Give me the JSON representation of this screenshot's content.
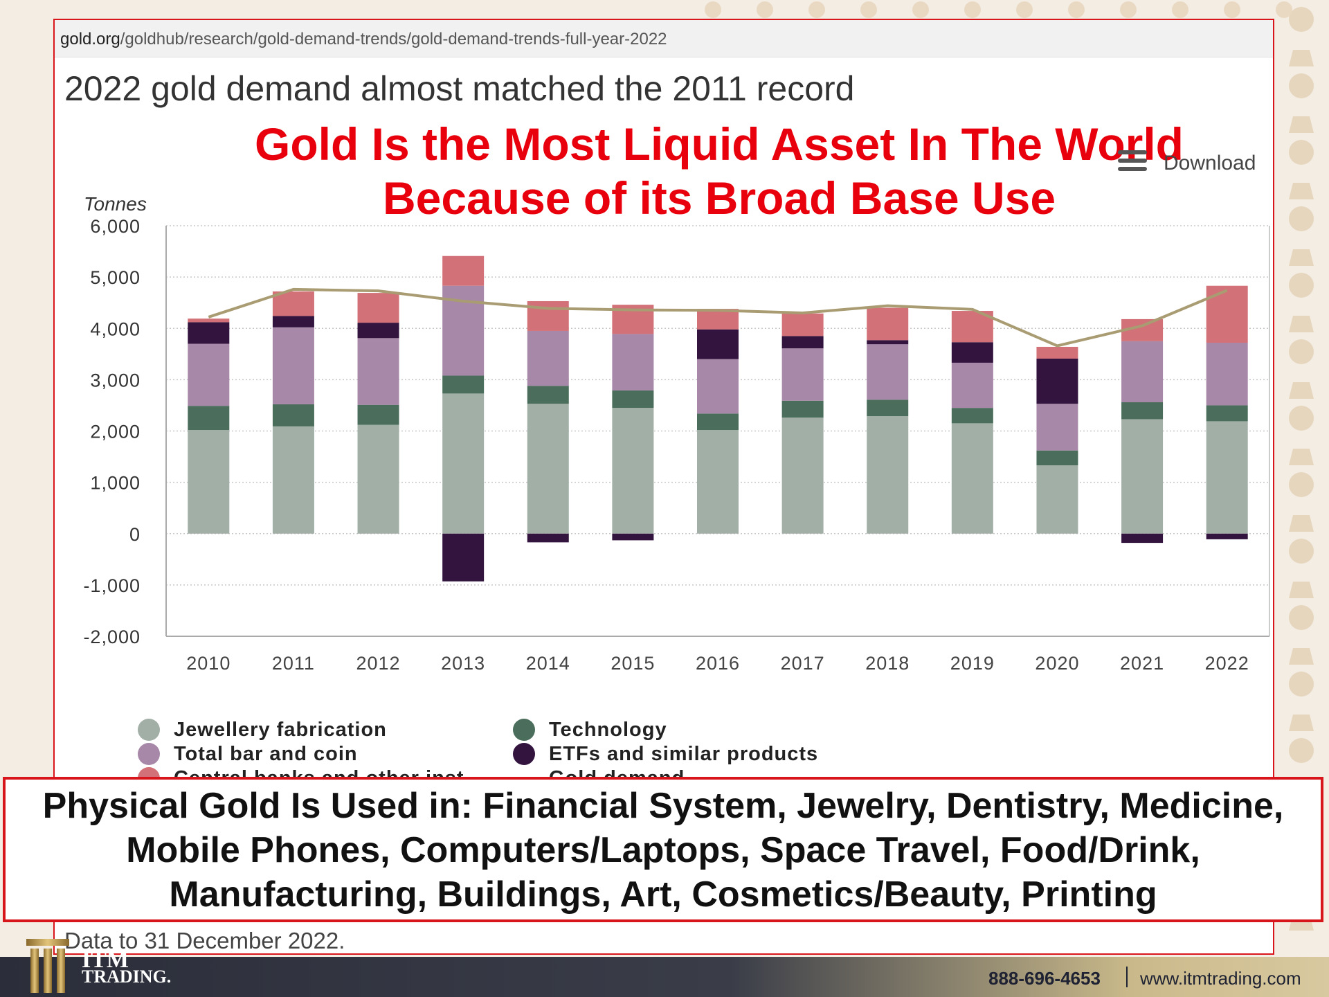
{
  "browser": {
    "url_domain": "gold.org",
    "url_path": "/goldhub/research/gold-demand-trends/gold-demand-trends-full-year-2022"
  },
  "chart_title": "2022 gold demand almost matched the 2011 record",
  "headline": {
    "line1": "Gold Is the Most Liquid Asset In The World",
    "line2": "Because of its Broad Base Use"
  },
  "download_label": "Download",
  "units_label": "Tonnes",
  "data_note": "Data to 31 December 2022.",
  "callout_lines": [
    "Physical Gold Is Used in: Financial System, Jewelry, Dentistry, Medicine,",
    "Mobile Phones, Computers/Laptops, Space Travel, Food/Drink,",
    "Manufacturing, Buildings, Art, Cosmetics/Beauty, Printing"
  ],
  "footer": {
    "brand_top": "ITM",
    "brand_bottom": "TRADING.",
    "phone": "888-696-4653",
    "website": "www.itmtrading.com"
  },
  "colors": {
    "jewellery": "#a2afa6",
    "technology": "#4b6e5c",
    "barcoin": "#a788a8",
    "etf": "#33143f",
    "cb": "#d27178",
    "demand_line": "#a99c72",
    "accent_red": "#d8151a"
  },
  "chart_data": {
    "type": "bar",
    "stacked": true,
    "x": [
      "2010",
      "2011",
      "2012",
      "2013",
      "2014",
      "2015",
      "2016",
      "2017",
      "2018",
      "2019",
      "2020",
      "2021",
      "2022"
    ],
    "ylabel": "Tonnes",
    "ylim": [
      -2000,
      6000
    ],
    "yticks": [
      -2000,
      -1000,
      0,
      1000,
      2000,
      3000,
      4000,
      5000,
      6000
    ],
    "ytick_labels": [
      "-2,000",
      "-1,000",
      "0",
      "1,000",
      "2,000",
      "3,000",
      "4,000",
      "5,000",
      "6,000"
    ],
    "grid": true,
    "series": [
      {
        "name": "Jewellery fabrication",
        "color_key": "jewellery",
        "values": [
          2020,
          2090,
          2120,
          2730,
          2530,
          2450,
          2020,
          2260,
          2290,
          2150,
          1330,
          2230,
          2190
        ]
      },
      {
        "name": "Technology",
        "color_key": "technology",
        "values": [
          470,
          430,
          390,
          350,
          350,
          340,
          320,
          330,
          320,
          300,
          290,
          330,
          310
        ]
      },
      {
        "name": "Total bar and coin",
        "color_key": "barcoin",
        "values": [
          1210,
          1500,
          1300,
          1750,
          1070,
          1100,
          1060,
          1020,
          1080,
          880,
          910,
          1190,
          1220
        ]
      },
      {
        "name": "ETFs and similar products",
        "color_key": "etf",
        "values": [
          420,
          220,
          300,
          -930,
          -170,
          -130,
          580,
          240,
          80,
          400,
          880,
          -180,
          -110
        ]
      },
      {
        "name": "Central banks and other inst.",
        "color_key": "cb",
        "values": [
          70,
          480,
          580,
          580,
          580,
          570,
          400,
          440,
          630,
          610,
          230,
          430,
          1110
        ]
      }
    ],
    "line": {
      "name": "Gold demand",
      "color_key": "demand_line",
      "values": [
        4220,
        4760,
        4730,
        4530,
        4390,
        4360,
        4350,
        4300,
        4440,
        4370,
        3660,
        4050,
        4740
      ]
    },
    "legend": [
      {
        "label": "Jewellery fabrication",
        "color_key": "jewellery",
        "shape": "dot"
      },
      {
        "label": "Total bar and coin",
        "color_key": "barcoin",
        "shape": "dot"
      },
      {
        "label": "Central banks and other inst.",
        "color_key": "cb",
        "shape": "dot"
      },
      {
        "label": "Technology",
        "color_key": "technology",
        "shape": "dot"
      },
      {
        "label": "ETFs and similar products",
        "color_key": "etf",
        "shape": "dot"
      },
      {
        "label": "Gold demand",
        "color_key": "demand_line",
        "shape": "line"
      }
    ],
    "legend_position": "bottom-left"
  }
}
